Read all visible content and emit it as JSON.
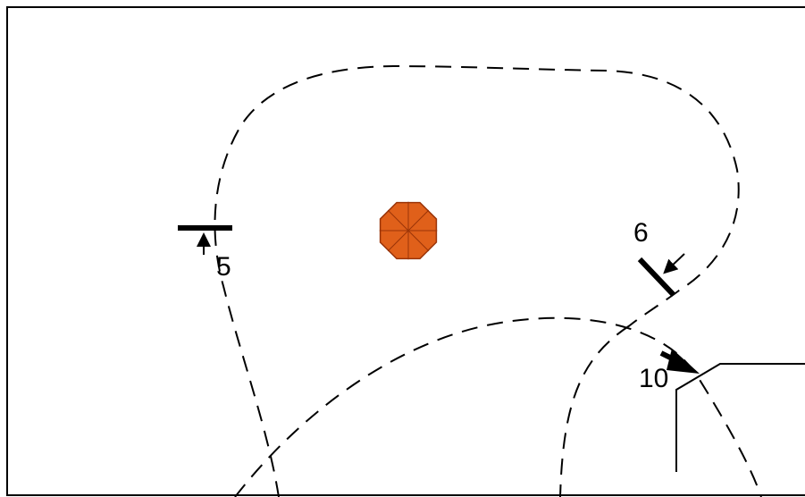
{
  "colors": {
    "ink": "#000000",
    "background": "#ffffff",
    "marker_fill": "#e0601a",
    "marker_dark": "#9a3408"
  },
  "markers": [
    {
      "id": "5",
      "label": "5",
      "icon": "gate-bar-icon"
    },
    {
      "id": "6",
      "label": "6",
      "icon": "gate-bar-icon"
    },
    {
      "id": "10",
      "label": "10",
      "icon": "gate-arrow-icon"
    }
  ],
  "center_icon": "octagon-buoy-icon"
}
